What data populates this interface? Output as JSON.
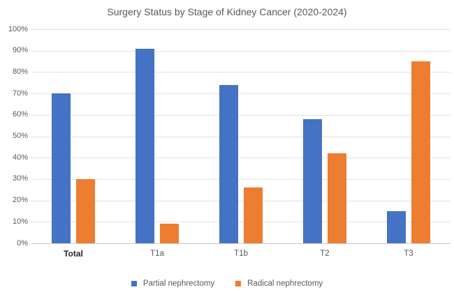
{
  "chart_data": {
    "type": "bar",
    "title": "Surgery Status by Stage of Kidney Cancer (2020-2024)",
    "categories": [
      "Total",
      "T1a",
      "T1b",
      "T2",
      "T3"
    ],
    "series": [
      {
        "name": "Partial nephrectomy",
        "color": "#4472C4",
        "values": [
          70,
          91,
          74,
          58,
          15
        ]
      },
      {
        "name": "Radical nephrectomy",
        "color": "#ED7D31",
        "values": [
          30,
          9,
          26,
          42,
          85
        ]
      }
    ],
    "y_ticks": [
      "100%",
      "90%",
      "80%",
      "70%",
      "60%",
      "50%",
      "40%",
      "30%",
      "20%",
      "10%",
      "0%"
    ],
    "ylim": [
      0,
      100
    ],
    "xlabel": "",
    "ylabel": "",
    "grid": true,
    "legend_position": "bottom",
    "emphasized_category": "Total"
  },
  "style": {
    "background": "#FFFFFF",
    "gridline_color": "#E2E2E2",
    "axis_line_color": "#C9C9C9",
    "text_color": "#595959",
    "emphasis_text_color": "#262626",
    "partial_color": "#4472C4",
    "radical_color": "#ED7D31"
  }
}
